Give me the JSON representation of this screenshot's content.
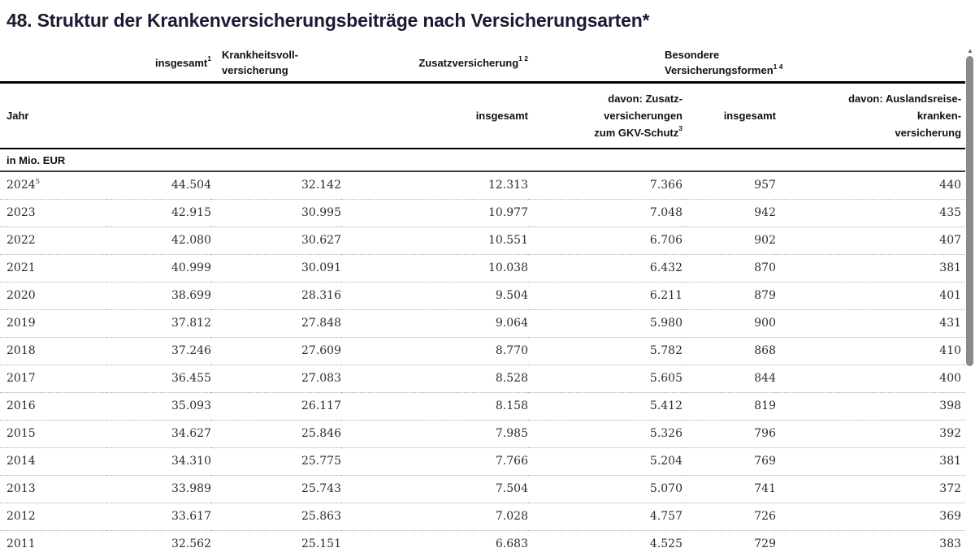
{
  "title": "48. Struktur der Krankenversicherungsbeiträge nach Versicherungsarten*",
  "colors": {
    "title_color": "#1b1b33",
    "header_color": "#111111",
    "data_color": "#2d2d2d",
    "rule_black": "#000000",
    "rule_dark": "#3a3a3a",
    "dotted_gray": "#aeaeae",
    "thumb_gray": "#8a8a8a",
    "arrow_gray": "#666666"
  },
  "icons": {
    "scroll_up": "▲"
  },
  "table": {
    "header_groups": {
      "col2_text": "insgesamt",
      "col2_sup": "1",
      "col3_line1": "Krankheitsvoll-",
      "col3_line2": "versicherung",
      "col4_text": "Zusatzversicherung",
      "col4_sup": "1 2",
      "col5_line1": "Besondere",
      "col5_line2": "Versicherungsformen",
      "col5_sup": "1 4"
    },
    "subheaders": {
      "jahr": "Jahr",
      "c4": "insgesamt",
      "c5_line1": "davon: Zusatz-",
      "c5_line2": "versicherungen",
      "c5_line3_text": "zum GKV-Schutz",
      "c5_line3_sup": "3",
      "c6": "insgesamt",
      "c7_line1": "davon: Auslandsreise-",
      "c7_line2": "kranken-",
      "c7_line3": "versicherung"
    },
    "unit_label": "in Mio. EUR"
  },
  "chart_data": {
    "type": "table",
    "title": "48. Struktur der Krankenversicherungsbeiträge nach Versicherungsarten*",
    "unit": "in Mio. EUR",
    "columns": [
      "Jahr",
      "insgesamt",
      "Krankheitsvollversicherung",
      "Zusatzversicherung insgesamt",
      "davon: Zusatzversicherungen zum GKV-Schutz",
      "Besondere Versicherungsformen insgesamt",
      "davon: Auslandsreisekrankenversicherung"
    ],
    "rows": [
      {
        "year": "2024",
        "sup": "5",
        "values": [
          "44.504",
          "32.142",
          "12.313",
          "7.366",
          "957",
          "440"
        ]
      },
      {
        "year": "2023",
        "sup": "",
        "values": [
          "42.915",
          "30.995",
          "10.977",
          "7.048",
          "942",
          "435"
        ]
      },
      {
        "year": "2022",
        "sup": "",
        "values": [
          "42.080",
          "30.627",
          "10.551",
          "6.706",
          "902",
          "407"
        ]
      },
      {
        "year": "2021",
        "sup": "",
        "values": [
          "40.999",
          "30.091",
          "10.038",
          "6.432",
          "870",
          "381"
        ]
      },
      {
        "year": "2020",
        "sup": "",
        "values": [
          "38.699",
          "28.316",
          "9.504",
          "6.211",
          "879",
          "401"
        ]
      },
      {
        "year": "2019",
        "sup": "",
        "values": [
          "37.812",
          "27.848",
          "9.064",
          "5.980",
          "900",
          "431"
        ]
      },
      {
        "year": "2018",
        "sup": "",
        "values": [
          "37.246",
          "27.609",
          "8.770",
          "5.782",
          "868",
          "410"
        ]
      },
      {
        "year": "2017",
        "sup": "",
        "values": [
          "36.455",
          "27.083",
          "8.528",
          "5.605",
          "844",
          "400"
        ]
      },
      {
        "year": "2016",
        "sup": "",
        "values": [
          "35.093",
          "26.117",
          "8.158",
          "5.412",
          "819",
          "398"
        ]
      },
      {
        "year": "2015",
        "sup": "",
        "values": [
          "34.627",
          "25.846",
          "7.985",
          "5.326",
          "796",
          "392"
        ]
      },
      {
        "year": "2014",
        "sup": "",
        "values": [
          "34.310",
          "25.775",
          "7.766",
          "5.204",
          "769",
          "381"
        ]
      },
      {
        "year": "2013",
        "sup": "",
        "values": [
          "33.989",
          "25.743",
          "7.504",
          "5.070",
          "741",
          "372"
        ]
      },
      {
        "year": "2012",
        "sup": "",
        "values": [
          "33.617",
          "25.863",
          "7.028",
          "4.757",
          "726",
          "369"
        ]
      },
      {
        "year": "2011",
        "sup": "",
        "values": [
          "32.562",
          "25.151",
          "6.683",
          "4.525",
          "729",
          "383"
        ]
      }
    ]
  }
}
